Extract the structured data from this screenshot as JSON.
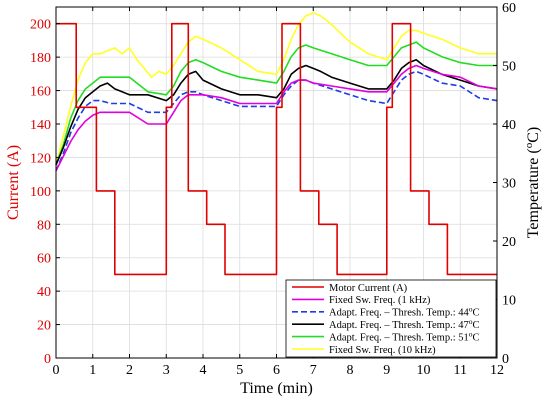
{
  "chart_data": {
    "type": "line",
    "xlabel": "Time (min)",
    "ylabel_left": "Current (A)",
    "ylabel_right_base": "Temperature (",
    "ylabel_right_sup": "o",
    "ylabel_right_end": "C)",
    "xlim": [
      0,
      12
    ],
    "ylim_left": [
      0,
      210
    ],
    "ylim_right": [
      0,
      60
    ],
    "x_ticks": [
      "0",
      "1",
      "2",
      "3",
      "4",
      "5",
      "6",
      "7",
      "8",
      "9",
      "10",
      "11",
      "12"
    ],
    "y_left_ticks": [
      "0",
      "20",
      "40",
      "60",
      "80",
      "100",
      "120",
      "140",
      "160",
      "180",
      "200"
    ],
    "y_right_ticks": [
      "0",
      "10",
      "20",
      "30",
      "40",
      "50",
      "60"
    ],
    "grid": true,
    "legend_position": "bottom-right",
    "series": [
      {
        "name": "Motor Current (A)",
        "axis": "left",
        "color": "#e00000",
        "dash": "solid",
        "x": [
          0,
          0.55,
          0.55,
          1.1,
          1.1,
          1.6,
          1.6,
          1.85,
          1.85,
          3.0,
          3.0,
          3.15,
          3.15,
          3.6,
          3.6,
          4.1,
          4.1,
          4.6,
          4.6,
          4.8,
          4.8,
          6.0,
          6.0,
          6.15,
          6.15,
          6.65,
          6.65,
          7.15,
          7.15,
          7.65,
          7.65,
          7.85,
          7.85,
          9.0,
          9.0,
          9.15,
          9.15,
          9.65,
          9.65,
          10.15,
          10.15,
          10.65,
          10.65,
          10.85,
          10.85,
          12.0
        ],
        "y": [
          200,
          200,
          150,
          150,
          100,
          100,
          50,
          50,
          50,
          50,
          150,
          150,
          200,
          200,
          100,
          100,
          80,
          80,
          50,
          50,
          50,
          50,
          150,
          150,
          200,
          200,
          100,
          100,
          80,
          80,
          50,
          50,
          50,
          50,
          150,
          150,
          200,
          200,
          100,
          100,
          80,
          80,
          50,
          50,
          50,
          50
        ]
      },
      {
        "name": "Fixed Sw. Freq. (1 kHz)",
        "axis": "right",
        "color": "#e000e0",
        "dash": "solid",
        "x": [
          0,
          0.2,
          0.4,
          0.6,
          0.8,
          1.0,
          1.2,
          1.5,
          2.0,
          2.5,
          3.0,
          3.2,
          3.4,
          3.6,
          3.8,
          4.0,
          4.5,
          5.0,
          5.5,
          6.0,
          6.2,
          6.4,
          6.6,
          6.8,
          7.0,
          7.5,
          8.0,
          8.5,
          9.0,
          9.2,
          9.4,
          9.6,
          9.8,
          10.0,
          10.5,
          11.0,
          11.5,
          12.0
        ],
        "y": [
          32,
          34.5,
          37,
          39,
          40.5,
          41.5,
          42,
          42,
          42,
          40,
          40,
          42,
          44,
          45,
          45,
          45,
          44.5,
          43.5,
          43.5,
          43.5,
          45.5,
          47,
          47.5,
          47.5,
          47,
          46.5,
          46,
          45.5,
          45.5,
          47,
          48.5,
          49.5,
          50,
          49.5,
          48.5,
          48,
          46.5,
          46
        ]
      },
      {
        "name": "Adapt. Freq. – Thresh. Temp.: 44",
        "sup": "o",
        "unit": "C",
        "axis": "right",
        "color": "#1e3ce8",
        "dash": "dashed",
        "x": [
          0,
          0.2,
          0.4,
          0.6,
          0.8,
          1.0,
          1.2,
          1.5,
          2.0,
          2.5,
          3.0,
          3.2,
          3.4,
          3.6,
          3.8,
          4.0,
          4.5,
          5.0,
          5.5,
          6.0,
          6.2,
          6.4,
          6.6,
          6.8,
          7.0,
          7.5,
          8.0,
          8.5,
          9.0,
          9.2,
          9.4,
          9.6,
          9.8,
          10.0,
          10.5,
          11.0,
          11.5,
          12.0
        ],
        "y": [
          32,
          35,
          38.5,
          41,
          43,
          44,
          44,
          43.5,
          43.5,
          42,
          42,
          43.5,
          45,
          45.5,
          45.5,
          45,
          44,
          43,
          43,
          43,
          45,
          46.5,
          47.5,
          47.5,
          47,
          46,
          45,
          44,
          43.5,
          45.5,
          47.5,
          48.5,
          49,
          48.5,
          47,
          46.5,
          44.5,
          44
        ]
      },
      {
        "name": "Adapt. Freq. – Thresh. Temp.: 47",
        "sup": "o",
        "unit": "C",
        "axis": "right",
        "color": "#000000",
        "dash": "solid",
        "x": [
          0,
          0.2,
          0.4,
          0.6,
          0.8,
          1.0,
          1.2,
          1.4,
          1.6,
          1.8,
          2.0,
          2.5,
          3.0,
          3.2,
          3.4,
          3.6,
          3.8,
          4.0,
          4.5,
          5.0,
          5.5,
          6.0,
          6.2,
          6.4,
          6.6,
          6.8,
          7.0,
          7.2,
          7.5,
          8.0,
          8.5,
          9.0,
          9.2,
          9.4,
          9.6,
          9.8,
          10.0,
          10.5,
          11.0,
          11.5,
          12.0
        ],
        "y": [
          33,
          36,
          39.5,
          42.5,
          44.5,
          45.5,
          46.5,
          47,
          46,
          45.5,
          45,
          45,
          44,
          45,
          47,
          48.5,
          49,
          47.5,
          46,
          45,
          45,
          44.5,
          46,
          48.5,
          49.5,
          50,
          49.5,
          49,
          48,
          47,
          46,
          46,
          47.5,
          49.5,
          50.5,
          51,
          50,
          48.5,
          47.5,
          46.5,
          46
        ]
      },
      {
        "name": "Adapt. Freq. – Thresh. Temp.: 51",
        "sup": "o",
        "unit": "C",
        "axis": "right",
        "color": "#22dd22",
        "dash": "solid",
        "x": [
          0,
          0.2,
          0.4,
          0.6,
          0.8,
          1.0,
          1.2,
          1.5,
          2.0,
          2.5,
          3.0,
          3.2,
          3.4,
          3.6,
          3.8,
          4.0,
          4.5,
          5.0,
          5.5,
          6.0,
          6.2,
          6.4,
          6.6,
          6.8,
          7.0,
          7.5,
          8.0,
          8.5,
          9.0,
          9.2,
          9.4,
          9.6,
          9.8,
          10.0,
          10.5,
          11.0,
          11.5,
          12.0
        ],
        "y": [
          33,
          36.5,
          41,
          44,
          46,
          47,
          48,
          48,
          48,
          45.5,
          45,
          46.5,
          49,
          50.5,
          51,
          50.5,
          49,
          48,
          47.5,
          47,
          49,
          51.5,
          53,
          53.5,
          53,
          52,
          51,
          50,
          50,
          51.5,
          53,
          53.5,
          54,
          53,
          51.5,
          50.5,
          50,
          50
        ]
      },
      {
        "name": "Fixed Sw. Freq. (10 kHz)",
        "axis": "right",
        "color": "#ffff22",
        "dash": "solid",
        "x": [
          0,
          0.2,
          0.4,
          0.6,
          0.8,
          1.0,
          1.2,
          1.4,
          1.6,
          1.8,
          2.0,
          2.2,
          2.4,
          2.6,
          2.8,
          3.0,
          3.2,
          3.4,
          3.6,
          3.8,
          4.0,
          4.5,
          5.0,
          5.5,
          6.0,
          6.2,
          6.4,
          6.6,
          6.8,
          7.0,
          7.2,
          7.5,
          8.0,
          8.5,
          9.0,
          9.2,
          9.4,
          9.6,
          9.8,
          10.0,
          10.5,
          11.0,
          11.5,
          12.0
        ],
        "y": [
          33,
          38,
          43,
          47.5,
          50.5,
          52,
          52,
          52.5,
          53,
          52,
          53,
          51,
          49.5,
          48,
          49,
          48.5,
          50,
          52,
          54,
          55,
          54.5,
          53,
          51,
          49,
          48.5,
          51,
          54.5,
          57,
          58.5,
          59,
          58.5,
          57,
          54,
          52,
          51,
          53,
          55,
          56,
          56,
          55.5,
          54.5,
          53,
          52,
          52
        ]
      }
    ]
  }
}
